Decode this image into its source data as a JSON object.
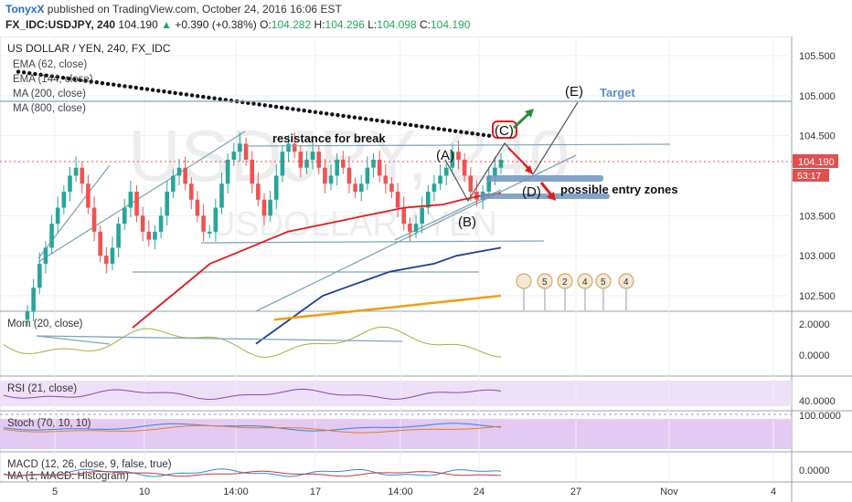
{
  "header": {
    "author": "TonyxX",
    "published": "published on TradingView.com, October 24, 2016 16:06 EST",
    "symbol": "FX_IDC:USDJPY, 240",
    "last": "104.190",
    "change_arrow": "▲",
    "change": "+0.390 (+0.38%)",
    "o_label": "O:",
    "o": "104.282",
    "h_label": "H:",
    "h": "104.296",
    "l_label": "L:",
    "l": "104.098",
    "c_label": "C:",
    "c": "104.190"
  },
  "chart_data": {
    "type": "candlestick",
    "title": "US DOLLAR / YEN, 240, FX_IDC",
    "watermark": "USDJPY, 240",
    "watermark_sub": "USDOLLAR / YEN",
    "indicator_legend": [
      "EMA (62, close)",
      "EMA (144, close)",
      "MA (200, close)",
      "MA (800, close)"
    ],
    "ylim": [
      102.2,
      105.8
    ],
    "y_ticks": [
      "105.500",
      "105.000",
      "104.500",
      "103.500",
      "103.000",
      "102.500"
    ],
    "last_price_label": "104.190",
    "countdown_label": "53:17",
    "price_path": [
      102.3,
      102.6,
      102.9,
      103.1,
      103.4,
      103.6,
      103.8,
      104.0,
      104.1,
      103.9,
      103.6,
      103.3,
      103.0,
      102.9,
      103.1,
      103.4,
      103.6,
      103.8,
      103.5,
      103.3,
      103.2,
      103.3,
      103.5,
      103.8,
      104.0,
      104.1,
      103.9,
      103.7,
      103.5,
      103.3,
      103.3,
      103.6,
      103.9,
      104.2,
      104.3,
      104.4,
      104.2,
      103.9,
      103.7,
      103.5,
      103.7,
      104.0,
      104.3,
      104.4,
      104.3,
      104.1,
      104.2,
      104.3,
      104.1,
      103.9,
      104.0,
      104.2,
      104.1,
      103.9,
      103.8,
      103.9,
      104.1,
      104.2,
      104.0,
      103.9,
      103.8,
      103.6,
      103.4,
      103.3,
      103.4,
      103.6,
      103.8,
      103.9,
      104.0,
      104.1,
      104.3,
      104.2,
      104.0,
      103.8,
      103.7,
      103.8,
      104.0,
      104.1,
      104.2
    ],
    "ema62": [
      102.1,
      102.3,
      102.5,
      102.7,
      102.9,
      103.0,
      103.1,
      103.2,
      103.3,
      103.35,
      103.4,
      103.45,
      103.5,
      103.55,
      103.6,
      103.62,
      103.64,
      103.7,
      103.75,
      103.78
    ],
    "ema144": [
      101.9,
      102.1,
      102.3,
      102.5,
      102.6,
      102.7,
      102.8,
      102.85,
      102.9,
      103.0,
      103.05,
      103.1
    ],
    "ma200_partial": [
      102.2,
      102.25,
      102.3,
      102.35,
      102.4,
      102.45,
      102.5
    ],
    "ma800_dots": [
      105.3,
      105.25,
      105.2,
      105.15,
      105.1,
      105.05,
      105.0,
      104.95,
      104.9,
      104.85,
      104.8,
      104.75,
      104.7,
      104.65,
      104.6,
      104.55,
      104.5
    ],
    "x_tick_labels": [
      "5",
      "10",
      "14:00",
      "17",
      "14:00",
      "24",
      "27",
      "Nov",
      "4"
    ],
    "annotations": {
      "resistance": "resistance for break",
      "target": "Target",
      "entry_zones": "possible entry zones",
      "A": "(A)",
      "B": "(B)",
      "C": "(C)",
      "D": "(D)",
      "E": "(E)"
    },
    "event_flags": [
      "5",
      "2",
      "4",
      "5",
      "4"
    ],
    "panels": [
      {
        "name": "Mom (20, close)",
        "ticks": [
          "2.0000",
          "0.0000"
        ]
      },
      {
        "name": "RSI (21, close)",
        "ticks": [
          "40.0000"
        ]
      },
      {
        "name": "Stoch (70, 10, 10)",
        "ticks": [
          "100.0000"
        ]
      },
      {
        "name": "MACD (12, 26, close, 9, false, true)",
        "sub": "MA (1, MACD: Histogram)",
        "ticks": [
          "0.0000"
        ]
      }
    ],
    "colors": {
      "up": "#26a69a",
      "down": "#ef5350",
      "ema62": "#e31b1b",
      "ema144": "#1f3c99",
      "ma200": "#f39c12",
      "ma800": "#111111",
      "trend": "#7fa7b8",
      "zone": "#6d95c2",
      "rsi_fill": "#e8dcf7",
      "stoch_fill": "#e6c8f4",
      "mom": "#a4b13a",
      "target": "#5b8fc7"
    }
  }
}
